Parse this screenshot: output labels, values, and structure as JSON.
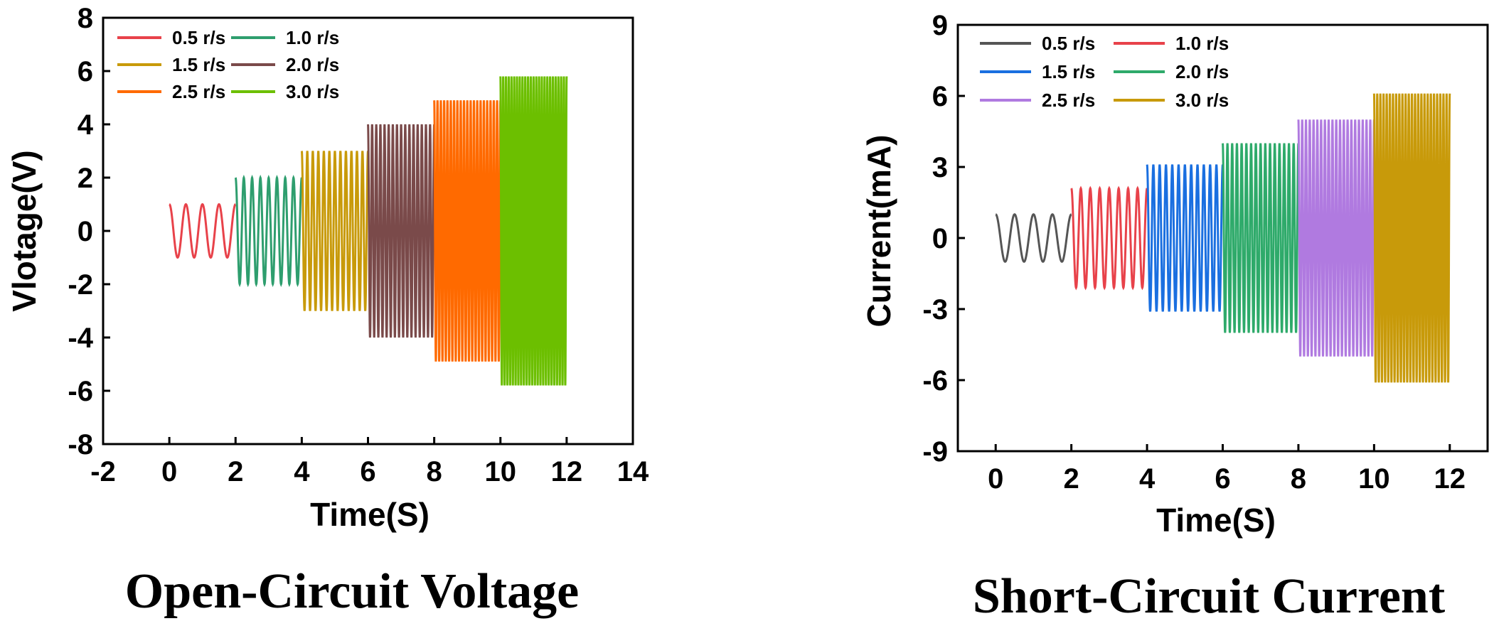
{
  "chart_data": [
    {
      "type": "line",
      "caption": "Open-Circuit Voltage",
      "xlabel": "Time(S)",
      "ylabel": "Vlotage(V)",
      "xlim": [
        -2,
        14
      ],
      "ylim": [
        -8,
        8
      ],
      "xticks": [
        "-2",
        "0",
        "2",
        "4",
        "6",
        "8",
        "10",
        "12",
        "14"
      ],
      "yticks": [
        "8",
        "6",
        "4",
        "2",
        "0",
        "-2",
        "-4",
        "-6",
        "-8"
      ],
      "legend_position": "top-left",
      "series": [
        {
          "name": "0.5 r/s",
          "color": "#e8424a",
          "t_start": 0,
          "t_end": 2,
          "amplitude": 1.0,
          "cycles": 4
        },
        {
          "name": "1.0 r/s",
          "color": "#2e9e6e",
          "t_start": 2,
          "t_end": 4,
          "amplitude": 2.0,
          "cycles": 8
        },
        {
          "name": "1.5 r/s",
          "color": "#c89a0a",
          "t_start": 4,
          "t_end": 6,
          "amplitude": 3.0,
          "cycles": 12
        },
        {
          "name": "2.0 r/s",
          "color": "#7a4a4a",
          "t_start": 6,
          "t_end": 8,
          "amplitude": 4.0,
          "cycles": 16
        },
        {
          "name": "2.5 r/s",
          "color": "#ff6a00",
          "t_start": 8,
          "t_end": 10,
          "amplitude": 4.9,
          "cycles": 20
        },
        {
          "name": "3.0 r/s",
          "color": "#6cbf00",
          "t_start": 10,
          "t_end": 12,
          "amplitude": 5.8,
          "cycles": 24
        }
      ]
    },
    {
      "type": "line",
      "caption": "Short-Circuit Current",
      "xlabel": "Time(S)",
      "ylabel": "Current(mA)",
      "xlim": [
        -1,
        13
      ],
      "ylim": [
        -9,
        9
      ],
      "xticks": [
        "0",
        "2",
        "4",
        "6",
        "8",
        "10",
        "12"
      ],
      "yticks": [
        "9",
        "6",
        "3",
        "0",
        "-3",
        "-6",
        "-9"
      ],
      "legend_position": "top-left",
      "series": [
        {
          "name": "0.5 r/s",
          "color": "#555555",
          "t_start": 0,
          "t_end": 2,
          "amplitude": 1.0,
          "cycles": 4
        },
        {
          "name": "1.0 r/s",
          "color": "#e8424a",
          "t_start": 2,
          "t_end": 4,
          "amplitude": 2.1,
          "cycles": 8
        },
        {
          "name": "1.5 r/s",
          "color": "#1a6fe0",
          "t_start": 4,
          "t_end": 6,
          "amplitude": 3.1,
          "cycles": 12
        },
        {
          "name": "2.0 r/s",
          "color": "#2eaa6a",
          "t_start": 6,
          "t_end": 8,
          "amplitude": 4.0,
          "cycles": 16
        },
        {
          "name": "2.5 r/s",
          "color": "#b07ae0",
          "t_start": 8,
          "t_end": 10,
          "amplitude": 5.0,
          "cycles": 20
        },
        {
          "name": "3.0 r/s",
          "color": "#c89a0a",
          "t_start": 10,
          "t_end": 12,
          "amplitude": 6.1,
          "cycles": 24
        }
      ]
    }
  ]
}
